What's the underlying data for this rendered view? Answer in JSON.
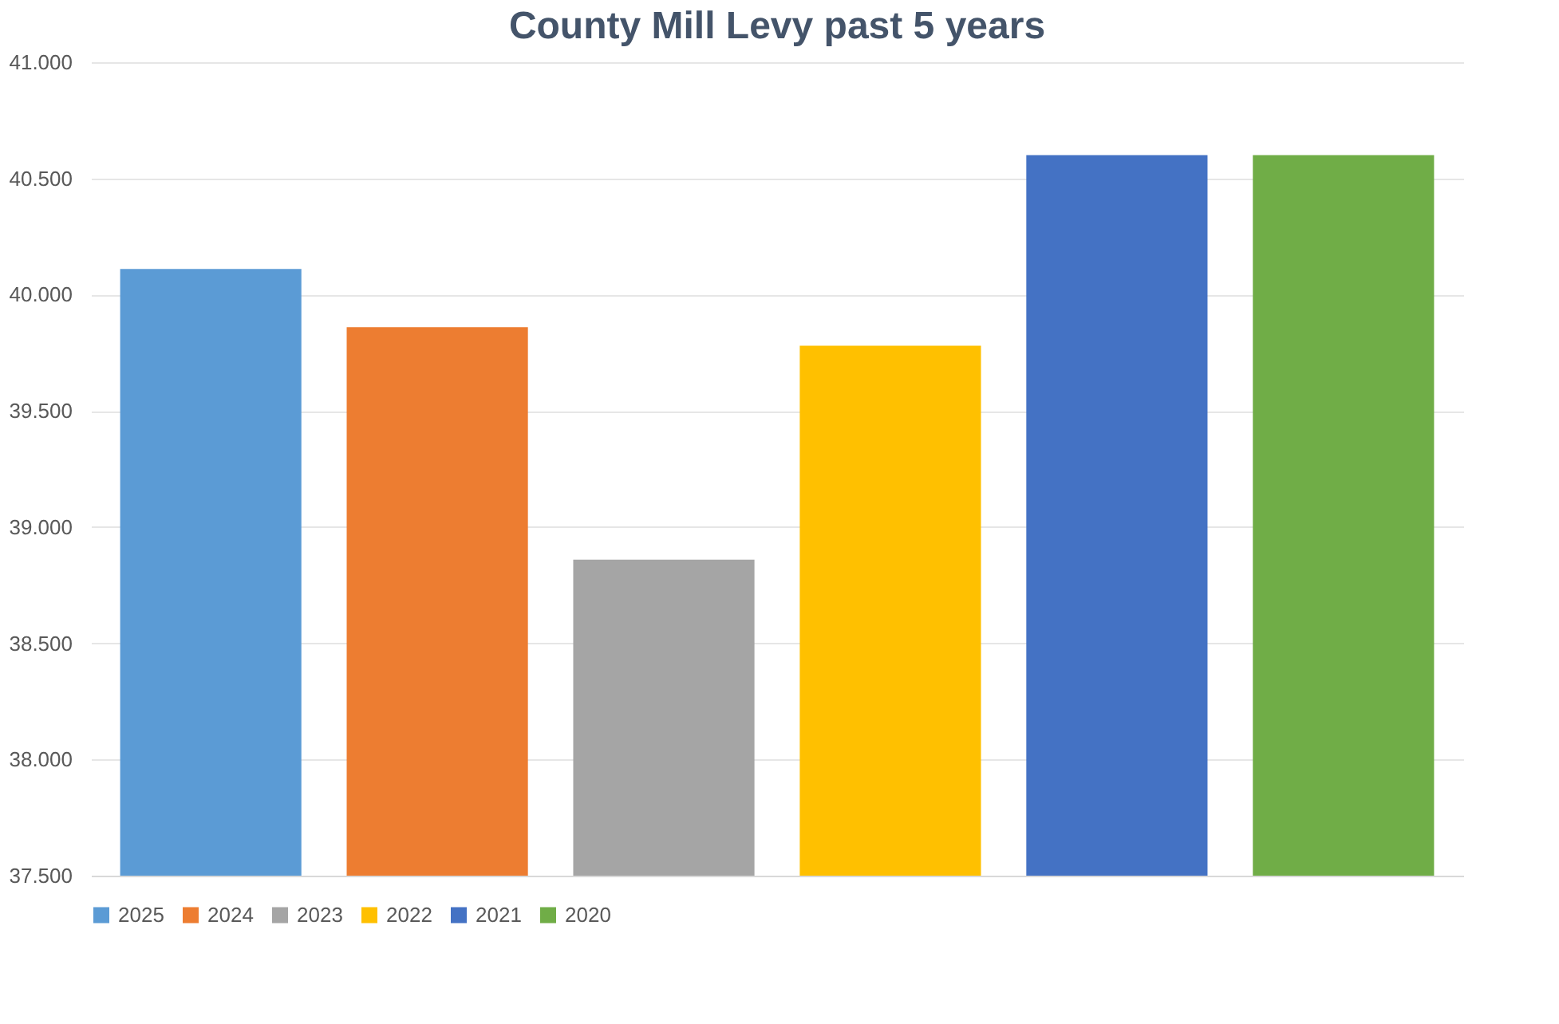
{
  "chart_data": {
    "type": "bar",
    "title": "County Mill Levy past 5 years",
    "categories": [
      null
    ],
    "series": [
      {
        "name": "2025",
        "color": "#5b9bd5",
        "values": [
          40.11
        ]
      },
      {
        "name": "2024",
        "color": "#ed7d31",
        "values": [
          39.86
        ]
      },
      {
        "name": "2023",
        "color": "#a5a5a5",
        "values": [
          38.86
        ]
      },
      {
        "name": "2022",
        "color": "#ffc000",
        "values": [
          39.78
        ]
      },
      {
        "name": "2021",
        "color": "#4472c4",
        "values": [
          40.6
        ]
      },
      {
        "name": "2020",
        "color": "#70ad47",
        "values": [
          40.6
        ]
      }
    ],
    "ylim": [
      37.5,
      41.0
    ],
    "yticks": [
      {
        "value": 37.5,
        "label": "37.500"
      },
      {
        "value": 38.0,
        "label": "38.000"
      },
      {
        "value": 38.5,
        "label": "38.500"
      },
      {
        "value": 39.0,
        "label": "39.000"
      },
      {
        "value": 39.5,
        "label": "39.500"
      },
      {
        "value": 40.0,
        "label": "40.000"
      },
      {
        "value": 40.5,
        "label": "40.500"
      },
      {
        "value": 41.0,
        "label": "41.000"
      }
    ],
    "grid": "y",
    "legend": "bottom"
  }
}
